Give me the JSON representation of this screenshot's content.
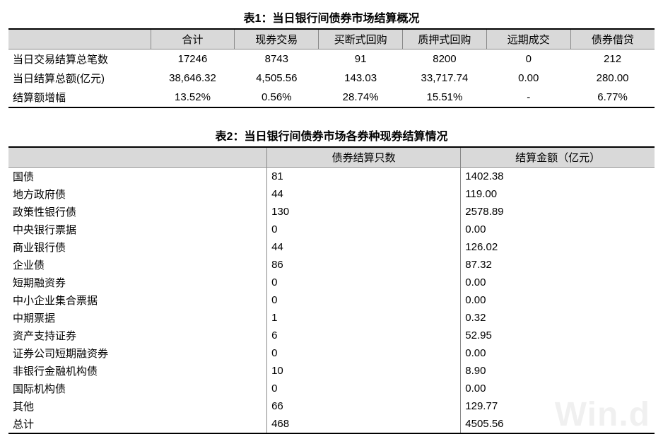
{
  "table1": {
    "title": "表1：当日银行间债券市场结算概况",
    "columns": [
      "",
      "合计",
      "现券交易",
      "买断式回购",
      "质押式回购",
      "远期成交",
      "债券借贷"
    ],
    "rows": [
      {
        "label": "当日交易结算总笔数",
        "values": [
          "17246",
          "8743",
          "91",
          "8200",
          "0",
          "212"
        ]
      },
      {
        "label": "当日结算总额(亿元)",
        "values": [
          "38,646.32",
          "4,505.56",
          "143.03",
          "33,717.74",
          "0.00",
          "280.00"
        ]
      },
      {
        "label": "结算额增幅",
        "values": [
          "13.52%",
          "0.56%",
          "28.74%",
          "15.51%",
          "-",
          "6.77%"
        ]
      }
    ]
  },
  "table2": {
    "title": "表2：当日银行间债券市场各券种现券结算情况",
    "columns": [
      "",
      "债券结算只数",
      "结算金额（亿元）"
    ],
    "rows": [
      {
        "name": "国债",
        "count": "81",
        "amount": "1402.38"
      },
      {
        "name": "地方政府债",
        "count": "44",
        "amount": "119.00"
      },
      {
        "name": "政策性银行债",
        "count": "130",
        "amount": "2578.89"
      },
      {
        "name": "中央银行票据",
        "count": "0",
        "amount": "0.00"
      },
      {
        "name": "商业银行债",
        "count": "44",
        "amount": "126.02"
      },
      {
        "name": "企业债",
        "count": "86",
        "amount": "87.32"
      },
      {
        "name": "短期融资券",
        "count": "0",
        "amount": "0.00"
      },
      {
        "name": "中小企业集合票据",
        "count": "0",
        "amount": "0.00"
      },
      {
        "name": "中期票据",
        "count": "1",
        "amount": "0.32"
      },
      {
        "name": "资产支持证券",
        "count": "6",
        "amount": "52.95"
      },
      {
        "name": "证券公司短期融资券",
        "count": "0",
        "amount": "0.00"
      },
      {
        "name": "非银行金融机构债",
        "count": "10",
        "amount": "8.90"
      },
      {
        "name": "国际机构债",
        "count": "0",
        "amount": "0.00"
      },
      {
        "name": "其他",
        "count": "66",
        "amount": "129.77"
      },
      {
        "name": "总计",
        "count": "468",
        "amount": "4505.56"
      }
    ]
  },
  "watermark": "Win.d",
  "styling": {
    "header_bg": "#d9d9d9",
    "border_color": "#888888",
    "outer_border_color": "#000000",
    "text_color": "#000000",
    "background_color": "#ffffff",
    "font_family": "Microsoft YaHei",
    "title_fontsize": 16,
    "cell_fontsize": 15,
    "watermark_color": "rgba(0,0,0,0.06)",
    "watermark_fontsize": 48
  }
}
